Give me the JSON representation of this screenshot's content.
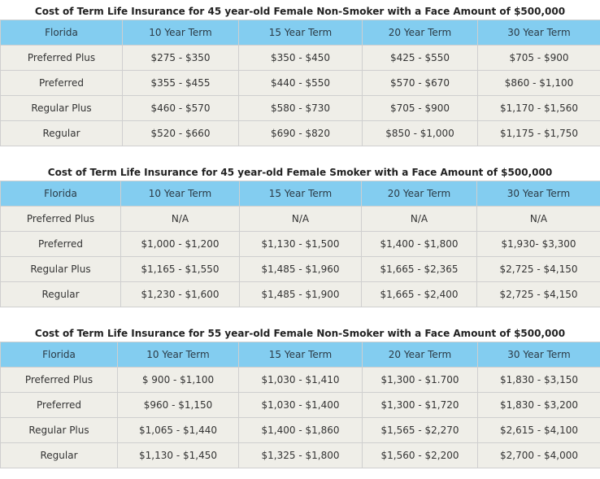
{
  "tables": [
    {
      "caption": "Cost of Term Life Insurance for 45 year-old Female Non-Smoker with a Face Amount of $500,000",
      "headers": [
        "Florida",
        "10 Year Term",
        "15 Year Term",
        "20 Year Term",
        "30 Year Term"
      ],
      "rows": [
        [
          "Preferred Plus",
          "$275 - $350",
          "$350 - $450",
          "$425 - $550",
          "$705 - $900"
        ],
        [
          "Preferred",
          "$355 - $455",
          "$440 - $550",
          "$570 - $670",
          "$860 - $1,100"
        ],
        [
          "Regular Plus",
          "$460 - $570",
          "$580 - $730",
          "$705 - $900",
          "$1,170 - $1,560"
        ],
        [
          "Regular",
          "$520 - $660",
          "$690 - $820",
          "$850 - $1,000",
          "$1,175 - $1,750"
        ]
      ]
    },
    {
      "caption": "Cost of Term Life Insurance for 45 year-old Female Smoker with a Face Amount of $500,000",
      "headers": [
        "Florida",
        "10 Year Term",
        "15 Year Term",
        "20 Year Term",
        "30 Year Term"
      ],
      "rows": [
        [
          "Preferred Plus",
          "N/A",
          "N/A",
          "N/A",
          "N/A"
        ],
        [
          "Preferred",
          "$1,000 - $1,200",
          "$1,130 - $1,500",
          "$1,400 - $1,800",
          "$1,930- $3,300"
        ],
        [
          "Regular Plus",
          "$1,165 - $1,550",
          "$1,485 - $1,960",
          "$1,665 - $2,365",
          "$2,725 - $4,150"
        ],
        [
          "Regular",
          "$1,230 - $1,600",
          "$1,485 - $1,900",
          "$1,665 - $2,400",
          "$2,725 - $4,150"
        ]
      ]
    },
    {
      "caption": "Cost of Term Life Insurance for 55 year-old Female Non-Smoker with a Face Amount of $500,000",
      "headers": [
        "Florida",
        "10 Year Term",
        "15 Year Term",
        "20 Year Term",
        "30 Year Term"
      ],
      "rows": [
        [
          "Preferred Plus",
          "$ 900 - $1,100",
          "$1,030 - $1,410",
          "$1,300 - $1.700",
          "$1,830 - $3,150"
        ],
        [
          "Preferred",
          "$960 - $1,150",
          "$1,030 - $1,400",
          "$1,300 - $1,720",
          "$1,830 - $3,200"
        ],
        [
          "Regular Plus",
          "$1,065 - $1,440",
          "$1,400 - $1,860",
          "$1,565 - $2,270",
          "$2,615 - $4,100"
        ],
        [
          "Regular",
          "$1,130 - $1,450",
          "$1,325 - $1,800",
          "$1,560 - $2,200",
          "$2,700 - $4,000"
        ]
      ]
    }
  ],
  "colors": {
    "header_bg": "#83cdf0",
    "cell_bg": "#efeee8",
    "border": "#cfcfcf"
  }
}
